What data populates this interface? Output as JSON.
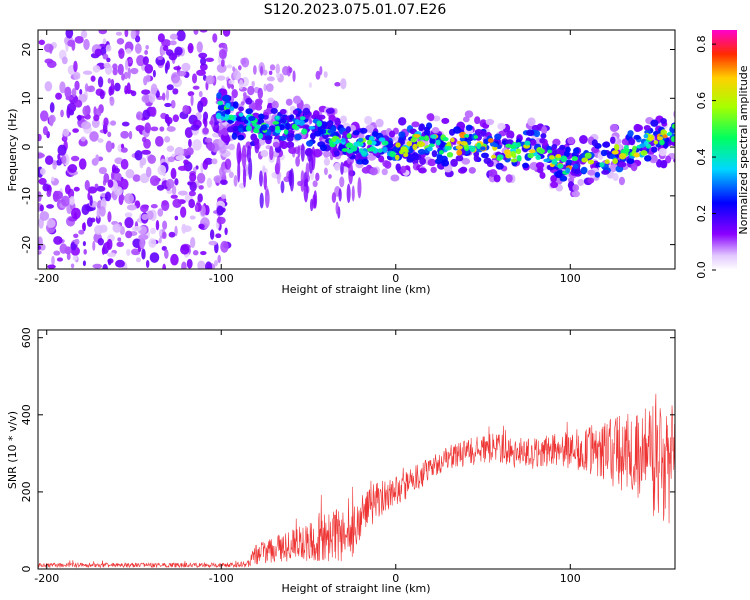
{
  "title": "S120.2023.075.01.07.E26",
  "chart_data": [
    {
      "type": "heatmap",
      "xlabel": "Height of straight line (km)",
      "ylabel": "Frequency (Hz)",
      "xlim": [
        -205,
        160
      ],
      "ylim": [
        -25,
        24
      ],
      "x_ticks": [
        "-200",
        "-100",
        "0",
        "100"
      ],
      "y_ticks": [
        "-20",
        "-10",
        "0",
        "10",
        "20"
      ],
      "colorbar": {
        "label": "Normalized spectral amplitude",
        "range": [
          0.0,
          0.85
        ],
        "ticks": [
          "0.0",
          "0.2",
          "0.4",
          "0.6",
          "0.8"
        ],
        "colormap": "rainbow"
      },
      "ridge": {
        "x": [
          -100,
          -90,
          -80,
          -70,
          -60,
          -50,
          -40,
          -30,
          -20,
          -10,
          0,
          10,
          20,
          30,
          40,
          50,
          60,
          70,
          80,
          90,
          100,
          110,
          120,
          130,
          140,
          150,
          160
        ],
        "frequency": [
          8,
          5,
          4,
          4,
          5,
          4,
          3,
          1,
          0,
          0,
          -1,
          1,
          1,
          0,
          1,
          0,
          -1,
          -1,
          0,
          -2,
          -4,
          -3,
          -2,
          -1,
          0,
          2,
          3
        ]
      },
      "noise_region_x": [
        -205,
        -100
      ],
      "grid": false,
      "legend": "none"
    },
    {
      "type": "line",
      "xlabel": "Height of straight line (km)",
      "ylabel": "SNR (10 * v/v)",
      "xlim": [
        -205,
        160
      ],
      "ylim": [
        0,
        620
      ],
      "x_ticks": [
        "-200",
        "-100",
        "0",
        "100"
      ],
      "y_ticks": [
        "0",
        "200",
        "400",
        "600"
      ],
      "series_color": "#ee3333",
      "trend": {
        "x": [
          -205,
          -150,
          -100,
          -85,
          -80,
          -60,
          -40,
          -25,
          -20,
          -10,
          0,
          10,
          20,
          30,
          40,
          50,
          60,
          70,
          80,
          90,
          100,
          110,
          120,
          130,
          140,
          150,
          160
        ],
        "mean": [
          10,
          10,
          10,
          12,
          40,
          60,
          80,
          100,
          140,
          180,
          200,
          230,
          260,
          290,
          300,
          315,
          310,
          300,
          300,
          305,
          310,
          310,
          305,
          300,
          290,
          280,
          270
        ],
        "spread": [
          6,
          6,
          6,
          8,
          30,
          40,
          60,
          80,
          60,
          50,
          40,
          35,
          30,
          30,
          35,
          40,
          40,
          40,
          40,
          45,
          50,
          60,
          80,
          100,
          130,
          150,
          160
        ]
      },
      "grid": false,
      "legend": "none"
    }
  ]
}
